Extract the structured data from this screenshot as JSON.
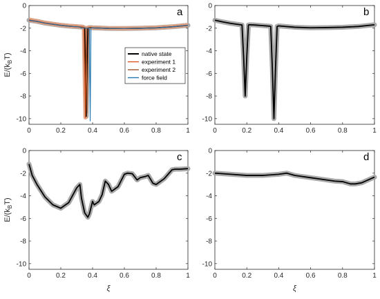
{
  "chart_data": [
    {
      "type": "line",
      "panel_label": "a",
      "xlabel": "",
      "ylabel": "E/(k_BT)",
      "ylabel_main": "E/(k",
      "ylabel_sub": "B",
      "ylabel_tail": "T)",
      "xlim": [
        0,
        1
      ],
      "ylim": [
        -10.5,
        0
      ],
      "xticks": [
        "0",
        "0.2",
        "0.4",
        "0.6",
        "0.8",
        "1"
      ],
      "yticks": [
        "0",
        "-2",
        "-4",
        "-6",
        "-8",
        "-10"
      ],
      "legend": {
        "placement": "right-center",
        "entries": [
          "native state",
          "experiment 1",
          "experiment 2",
          "force field"
        ]
      },
      "series": [
        {
          "name": "native state",
          "color": "#000000",
          "x": [
            0,
            0.05,
            0.1,
            0.15,
            0.2,
            0.25,
            0.3,
            0.33,
            0.34,
            0.35,
            0.36,
            0.37,
            0.38,
            0.39,
            0.4,
            0.5,
            0.6,
            0.7,
            0.8,
            0.9,
            1.0
          ],
          "y": [
            -1.3,
            -1.4,
            -1.55,
            -1.65,
            -1.75,
            -1.82,
            -1.87,
            -1.9,
            -1.92,
            -2.0,
            -9.8,
            -2.0,
            -1.95,
            -1.95,
            -1.97,
            -2.02,
            -2.03,
            -2.01,
            -1.97,
            -1.88,
            -1.75
          ]
        },
        {
          "name": "experiment 1",
          "color": "#d95319",
          "x": [
            0,
            0.05,
            0.1,
            0.15,
            0.2,
            0.25,
            0.3,
            0.33,
            0.34,
            0.345,
            0.355,
            0.36,
            0.37,
            0.38,
            0.39,
            0.4,
            0.5,
            0.6,
            0.7,
            0.8,
            0.9,
            1.0
          ],
          "y": [
            -1.25,
            -1.38,
            -1.52,
            -1.63,
            -1.73,
            -1.8,
            -1.85,
            -1.88,
            -1.9,
            -2.0,
            -9.9,
            -2.0,
            -1.96,
            -1.95,
            -1.95,
            -1.96,
            -2.01,
            -2.02,
            -2.0,
            -1.96,
            -1.87,
            -1.73
          ]
        },
        {
          "name": "experiment 2",
          "color": "#a0522d",
          "x": [
            0,
            0.05,
            0.1,
            0.15,
            0.2,
            0.25,
            0.3,
            0.33,
            0.35,
            0.36,
            0.365,
            0.375,
            0.38,
            0.39,
            0.4,
            0.5,
            0.6,
            0.7,
            0.8,
            0.9,
            1.0
          ],
          "y": [
            -1.35,
            -1.42,
            -1.57,
            -1.67,
            -1.77,
            -1.84,
            -1.89,
            -1.92,
            -1.94,
            -2.0,
            -9.5,
            -2.0,
            -1.96,
            -1.96,
            -1.98,
            -2.03,
            -2.04,
            -2.02,
            -1.98,
            -1.9,
            -1.77
          ]
        },
        {
          "name": "force field",
          "color": "#1f77b4",
          "x": [
            0,
            0.05,
            0.1,
            0.15,
            0.2,
            0.25,
            0.3,
            0.32,
            0.33,
            0.37,
            0.38,
            0.385,
            0.39,
            0.4,
            0.5,
            0.6,
            0.7,
            0.8,
            0.9,
            1.0
          ],
          "y": [
            -1.3,
            -1.4,
            -1.55,
            -1.65,
            -1.75,
            -1.82,
            -1.87,
            -1.9,
            -2.0,
            -2.0,
            -2.0,
            -10.2,
            -2.0,
            -1.97,
            -2.02,
            -2.03,
            -2.01,
            -1.97,
            -1.88,
            -1.75
          ]
        }
      ]
    },
    {
      "type": "line",
      "panel_label": "b",
      "xlabel": "",
      "ylabel": "",
      "xlim": [
        0,
        1
      ],
      "ylim": [
        -10.5,
        0
      ],
      "xticks": [
        "0",
        "0.2",
        "0.4",
        "0.6",
        "0.8",
        "1"
      ],
      "yticks": [
        "0",
        "-2",
        "-4",
        "-6",
        "-8",
        "-10"
      ],
      "series": [
        {
          "name": "",
          "color": "#000000",
          "band": true,
          "x": [
            0,
            0.05,
            0.1,
            0.15,
            0.17,
            0.18,
            0.19,
            0.2,
            0.21,
            0.22,
            0.25,
            0.3,
            0.34,
            0.35,
            0.36,
            0.37,
            0.38,
            0.39,
            0.4,
            0.5,
            0.6,
            0.7,
            0.8,
            0.9,
            1.0
          ],
          "y": [
            -1.3,
            -1.45,
            -1.58,
            -1.68,
            -1.72,
            -4.5,
            -8.0,
            -4.5,
            -1.72,
            -1.7,
            -1.72,
            -1.78,
            -1.82,
            -1.85,
            -5.5,
            -10.0,
            -5.5,
            -1.85,
            -1.8,
            -1.92,
            -1.97,
            -1.95,
            -1.92,
            -1.85,
            -1.7
          ]
        }
      ]
    },
    {
      "type": "line",
      "panel_label": "c",
      "xlabel": "ξ",
      "ylabel": "E/(k_BT)",
      "ylabel_main": "E/(k",
      "ylabel_sub": "B",
      "ylabel_tail": "T)",
      "xlim": [
        0,
        1
      ],
      "ylim": [
        -10.5,
        0
      ],
      "xticks": [
        "0",
        "0.2",
        "0.4",
        "0.6",
        "0.8",
        "1"
      ],
      "yticks": [
        "0",
        "-2",
        "-4",
        "-6",
        "-8",
        "-10"
      ],
      "series": [
        {
          "name": "",
          "color": "#000000",
          "band": true,
          "x": [
            0,
            0.02,
            0.05,
            0.1,
            0.15,
            0.2,
            0.25,
            0.3,
            0.32,
            0.33,
            0.35,
            0.37,
            0.38,
            0.4,
            0.41,
            0.43,
            0.44,
            0.46,
            0.48,
            0.5,
            0.52,
            0.56,
            0.6,
            0.62,
            0.65,
            0.68,
            0.7,
            0.73,
            0.75,
            0.78,
            0.8,
            0.85,
            0.9,
            0.92,
            0.95,
            1.0
          ],
          "y": [
            -1.2,
            -2.2,
            -3.0,
            -4.1,
            -4.8,
            -5.1,
            -4.6,
            -3.3,
            -3.0,
            -4.2,
            -5.5,
            -5.9,
            -5.6,
            -4.5,
            -4.8,
            -4.6,
            -4.5,
            -3.9,
            -2.7,
            -3.0,
            -3.6,
            -3.2,
            -2.1,
            -2.0,
            -2.05,
            -2.6,
            -2.4,
            -2.3,
            -2.2,
            -2.9,
            -3.0,
            -2.5,
            -1.7,
            -1.65,
            -1.65,
            -1.6
          ]
        }
      ]
    },
    {
      "type": "line",
      "panel_label": "d",
      "xlabel": "ξ",
      "ylabel": "",
      "xlim": [
        0,
        1
      ],
      "ylim": [
        -10.5,
        0
      ],
      "xticks": [
        "0",
        "0.2",
        "0.4",
        "0.6",
        "0.8",
        "1"
      ],
      "yticks": [
        "0",
        "-2",
        "-4",
        "-6",
        "-8",
        "-10"
      ],
      "series": [
        {
          "name": "",
          "color": "#000000",
          "band": true,
          "x": [
            0,
            0.1,
            0.2,
            0.3,
            0.4,
            0.45,
            0.5,
            0.6,
            0.7,
            0.75,
            0.8,
            0.85,
            0.88,
            0.92,
            0.96,
            1.0
          ],
          "y": [
            -2.0,
            -2.1,
            -2.2,
            -2.2,
            -2.1,
            -2.0,
            -2.2,
            -2.4,
            -2.6,
            -2.7,
            -2.75,
            -2.95,
            -2.95,
            -2.85,
            -2.6,
            -2.35
          ]
        }
      ]
    }
  ]
}
